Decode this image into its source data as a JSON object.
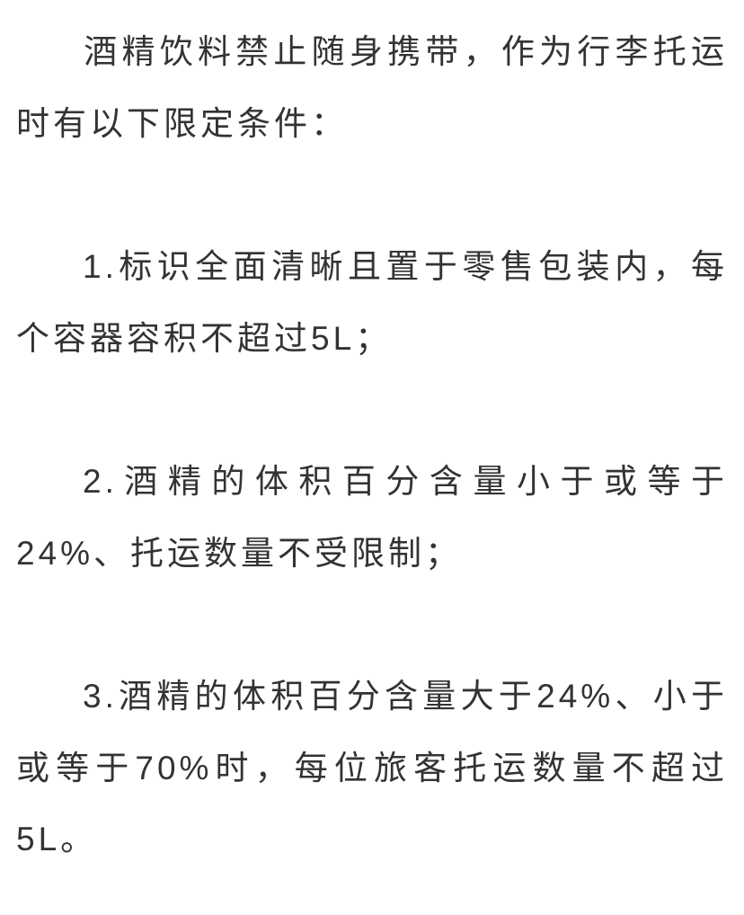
{
  "document": {
    "paragraphs": [
      {
        "text": "酒精饮料禁止随身携带，作为行李托运时有以下限定条件：",
        "indented": true
      },
      {
        "text": "1.标识全面清晰且置于零售包装内，每个容器容积不超过5L；",
        "indented": true
      },
      {
        "text": "2.酒精的体积百分含量小于或等于24%、托运数量不受限制；",
        "indented": true
      },
      {
        "text": "3.酒精的体积百分含量大于24%、小于或等于70%时，每位旅客托运数量不超过5L。",
        "indented": true
      }
    ],
    "styling": {
      "background_color": "#ffffff",
      "text_color": "#333333",
      "font_size": 37,
      "line_height": 2.15,
      "letter_spacing": 4,
      "paragraph_spacing": 80,
      "indent_chars": 2
    }
  }
}
